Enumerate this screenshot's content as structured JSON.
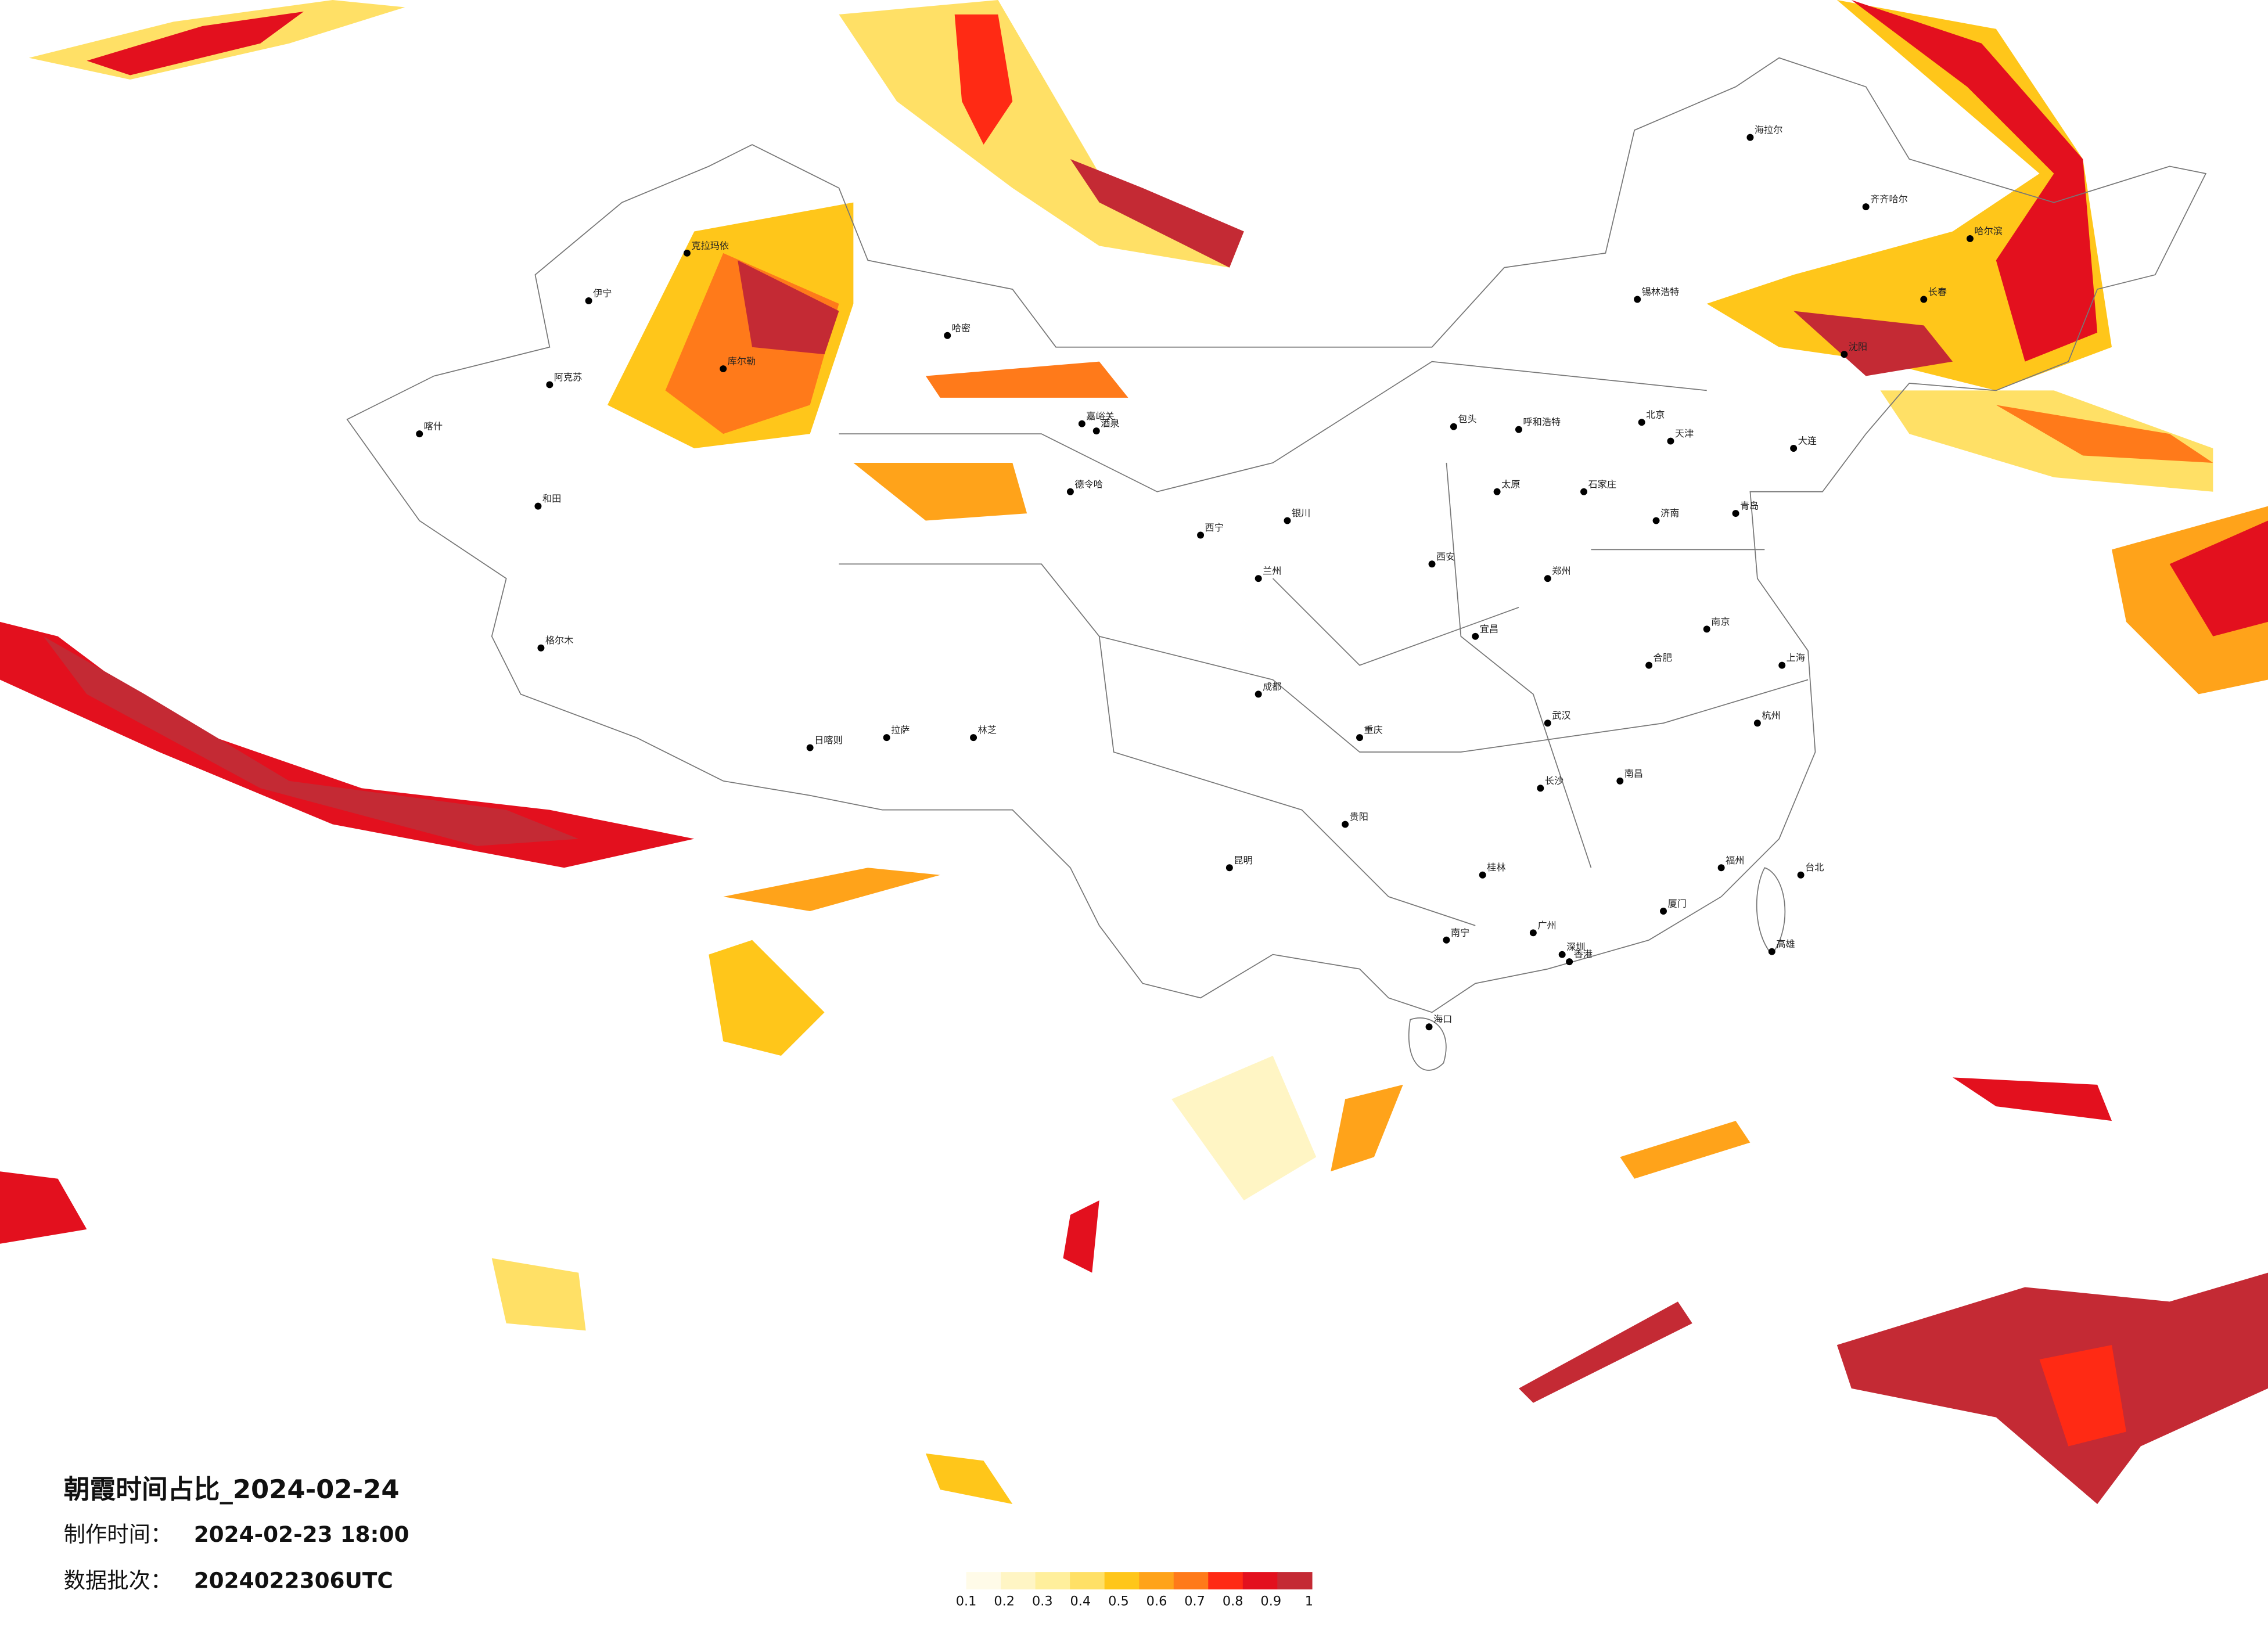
{
  "header": {
    "title": "朝霞时间占比_2024-02-24",
    "made_label": "制作时间：",
    "made_value": "2024-02-23 18:00",
    "batch_label": "数据批次：",
    "batch_value": "2024022306UTC"
  },
  "colorbar": {
    "colors": [
      "#fffbe8",
      "#fff5c4",
      "#ffef9c",
      "#ffe066",
      "#ffc61a",
      "#ffa31a",
      "#ff7a1a",
      "#ff2a14",
      "#e3101e",
      "#c42a34"
    ],
    "labels": [
      0.1,
      0.2,
      0.3,
      0.4,
      0.5,
      0.6,
      0.7,
      0.8,
      0.9,
      1
    ]
  },
  "cities": [
    "克拉玛依",
    "伊宁",
    "阿克苏",
    "喀什",
    "和田",
    "哈密",
    "库尔勒",
    "嘉峪关",
    "酒泉",
    "格尔木",
    "德令哈",
    "西宁",
    "兰州",
    "银川",
    "呼和浩特",
    "包头",
    "锡林浩特",
    "海拉尔",
    "齐齐哈尔",
    "哈尔滨",
    "长春",
    "沈阳",
    "大连",
    "北京",
    "天津",
    "石家庄",
    "太原",
    "济南",
    "青岛",
    "郑州",
    "西安",
    "武汉",
    "合肥",
    "南京",
    "上海",
    "杭州",
    "长沙",
    "南昌",
    "福州",
    "广州",
    "深圳",
    "南宁",
    "海口",
    "贵阳",
    "昆明",
    "成都",
    "重庆",
    "拉萨",
    "日喀则",
    "林芝",
    "台北",
    "高雄",
    "香港",
    "厦门",
    "桂林",
    "宜昌"
  ]
}
